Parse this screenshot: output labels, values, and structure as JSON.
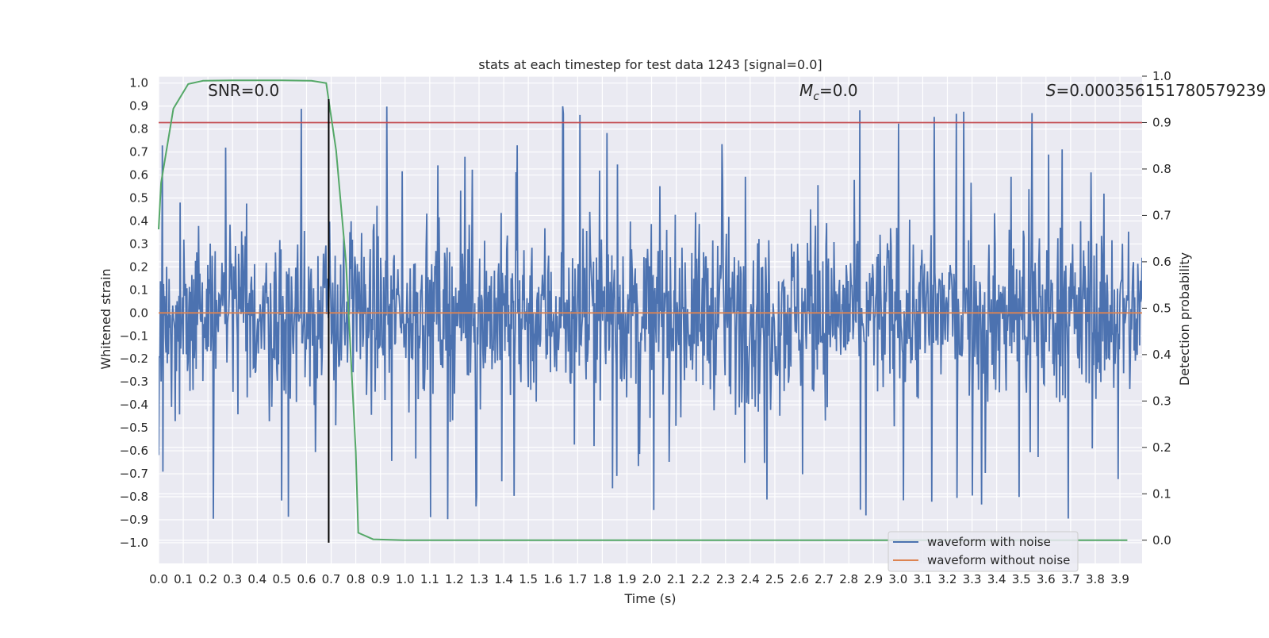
{
  "chart_data": {
    "type": "line",
    "title": "stats at each timestep for test data 1243 [signal=0.0]",
    "xlabel": "Time (s)",
    "ylabel": "Whitened strain",
    "y2label": "Detection probability",
    "xlim": [
      0.0,
      3.99
    ],
    "ylim": [
      -1.09,
      1.03
    ],
    "y2lim": [
      -0.05,
      1.0
    ],
    "xticks": [
      0.0,
      0.1,
      0.2,
      0.3,
      0.4,
      0.5,
      0.6,
      0.7,
      0.8,
      0.9,
      1.0,
      1.1,
      1.2,
      1.3,
      1.4,
      1.5,
      1.6,
      1.7,
      1.8,
      1.9,
      2.0,
      2.1,
      2.2,
      2.3,
      2.4,
      2.5,
      2.6,
      2.7,
      2.8,
      2.9,
      3.0,
      3.1,
      3.2,
      3.3,
      3.4,
      3.5,
      3.6,
      3.7,
      3.8,
      3.9
    ],
    "yticks": [
      1.0,
      0.9,
      0.8,
      0.7,
      0.6,
      0.5,
      0.4,
      0.3,
      0.2,
      0.1,
      0.0,
      -0.1,
      -0.2,
      -0.3,
      -0.4,
      -0.5,
      -0.6,
      -0.7,
      -0.8,
      -0.9,
      -1.0
    ],
    "y2ticks": [
      1.0,
      0.9,
      0.8,
      0.7,
      0.6,
      0.5,
      0.4,
      0.3,
      0.2,
      0.1,
      0.0
    ],
    "grid": true,
    "legend_position": "bottom-right",
    "colors": {
      "noisy": "#4c72b0",
      "clean": "#dd8452",
      "probability": "#55a868",
      "threshold": "#c44e52",
      "marker": "#000000",
      "plot_bg": "#eaeaf2",
      "grid": "#ffffff"
    },
    "series": [
      {
        "name": "waveform with noise",
        "axis": "left",
        "description": "dense noisy whitened strain, roughly uniform amplitude ~0.35 with spikes up to ~0.93 and down to ~-0.98",
        "envelope": {
          "typical_amplitude": 0.35,
          "max": 0.93,
          "min": -0.98
        },
        "sample_count": 1600
      },
      {
        "name": "waveform without noise",
        "axis": "left",
        "x": [
          0.0,
          3.99
        ],
        "y": [
          0.0,
          0.0
        ]
      },
      {
        "name": "detection probability",
        "axis": "right",
        "legend": false,
        "x": [
          0.0,
          0.01,
          0.06,
          0.12,
          0.18,
          0.3,
          0.5,
          0.62,
          0.68,
          0.72,
          0.76,
          0.8,
          0.81,
          0.87,
          1.0,
          1.5,
          2.0,
          3.0,
          3.93
        ],
        "y": [
          0.67,
          0.77,
          0.93,
          0.983,
          0.99,
          0.991,
          0.991,
          0.99,
          0.985,
          0.84,
          0.6,
          0.19,
          0.016,
          0.002,
          0.0,
          0.0,
          0.0,
          0.0,
          0.0
        ]
      },
      {
        "name": "threshold",
        "axis": "right",
        "legend": false,
        "x": [
          0.0,
          3.99
        ],
        "y": [
          0.9,
          0.9
        ]
      }
    ],
    "vline": {
      "x": 0.69,
      "ymin": -1.0,
      "ymax": 0.93
    },
    "annotations": [
      {
        "id": "snr",
        "text": "SNR=0.0",
        "x": 0.2
      },
      {
        "id": "mc",
        "text": "=0.0",
        "symbol_main": "M",
        "symbol_sub": "c",
        "x": 2.6
      },
      {
        "id": "score",
        "text": "=0.000356151780579239",
        "symbol_main": "S",
        "x": 3.6
      }
    ],
    "legend_entries": [
      {
        "label": "waveform with noise",
        "color_key": "noisy"
      },
      {
        "label": "waveform without noise",
        "color_key": "clean"
      }
    ]
  }
}
